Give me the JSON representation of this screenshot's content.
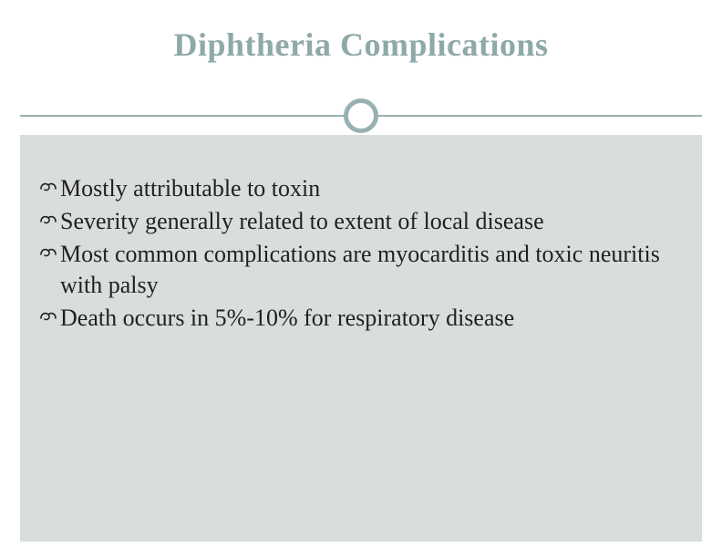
{
  "slide": {
    "title": "Diphtheria Complications",
    "title_color": "#8fa9a8",
    "title_fontsize": 36,
    "title_fontweight": "bold",
    "divider_color": "#97b1b0",
    "content_bg": "#d8dedb",
    "page_bg": "#ffffff",
    "bullet_glyph": "་",
    "bullets": [
      "Mostly attributable to toxin",
      "Severity generally related to extent of local disease",
      "Most common complications are myocarditis and toxic neuritis with palsy",
      "Death occurs in 5%-10% for respiratory disease"
    ],
    "bullet_fontsize": 26,
    "bullet_color": "#231f20"
  }
}
